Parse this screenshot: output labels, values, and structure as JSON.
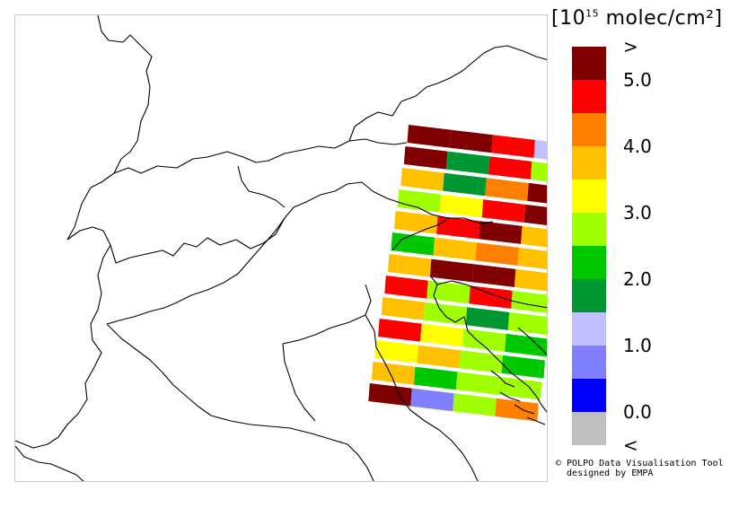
{
  "legend": {
    "title_prefix": "[10",
    "title_exp": "15",
    "title_suffix": " molec/cm²]",
    "colors": [
      "#800000",
      "#ff0000",
      "#ff8000",
      "#ffc000",
      "#ffff00",
      "#a0ff00",
      "#00c800",
      "#009632",
      "#c0c0ff",
      "#8080ff",
      "#0000ff",
      "#c0c0c0"
    ],
    "labels": [
      {
        "text": ">",
        "row": 0
      },
      {
        "text": "5.0",
        "row": 1
      },
      {
        "text": "4.0",
        "row": 3
      },
      {
        "text": "3.0",
        "row": 5
      },
      {
        "text": "2.0",
        "row": 7
      },
      {
        "text": "1.0",
        "row": 9
      },
      {
        "text": "0.0",
        "row": 11
      },
      {
        "text": "<",
        "row": 12
      }
    ]
  },
  "credit": {
    "line1": "© POLPO Data Visualisation Tool",
    "line2": "  designed by EMPA"
  },
  "pixel_grid": {
    "palette_index_rows": [
      [
        0,
        0,
        1,
        8
      ],
      [
        0,
        7,
        1,
        5
      ],
      [
        3,
        7,
        2,
        0
      ],
      [
        5,
        4,
        1,
        0
      ],
      [
        3,
        1,
        0,
        3
      ],
      [
        6,
        3,
        2,
        3
      ],
      [
        3,
        0,
        0,
        3
      ],
      [
        1,
        5,
        1,
        5
      ],
      [
        3,
        5,
        7,
        5
      ],
      [
        1,
        4,
        5,
        6
      ],
      [
        4,
        3,
        5,
        6
      ],
      [
        3,
        6,
        5,
        5
      ],
      [
        0,
        9,
        5,
        2
      ]
    ]
  }
}
